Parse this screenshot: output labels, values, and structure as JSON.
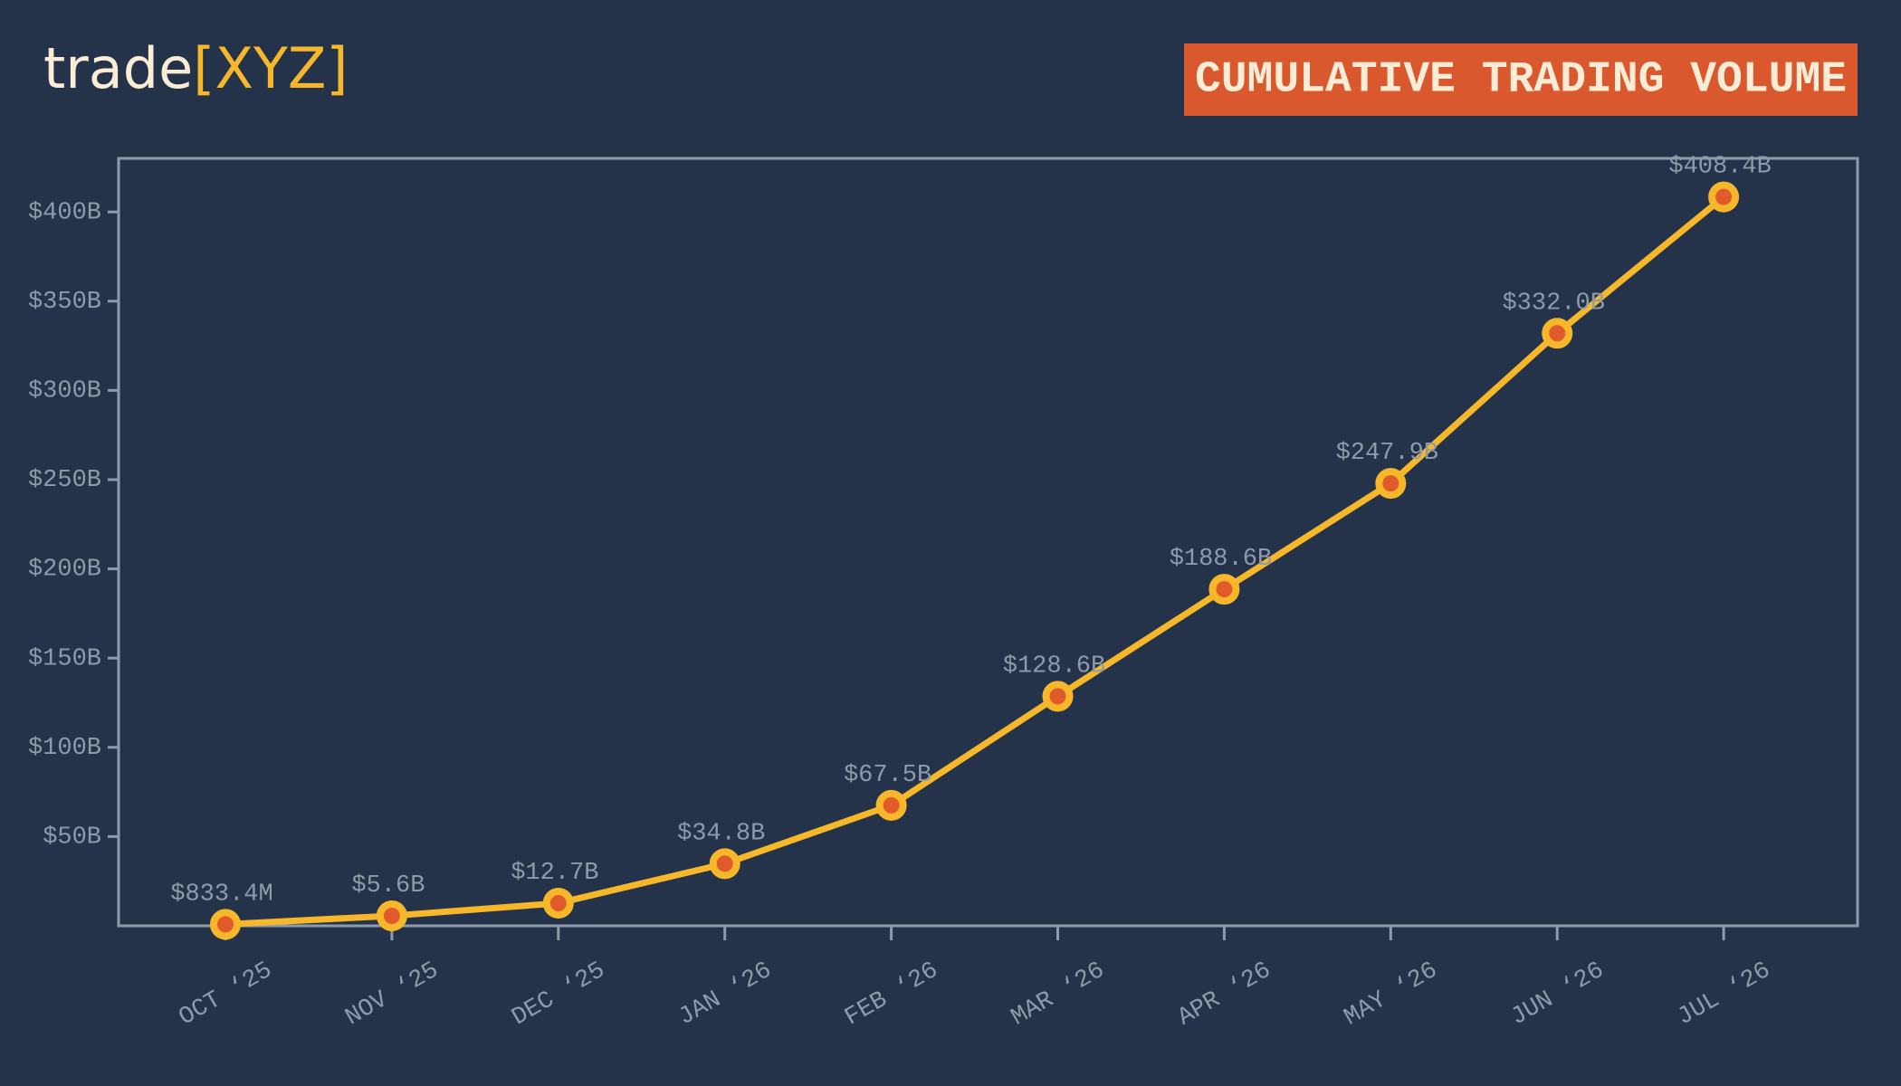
{
  "chart_data": {
    "type": "line",
    "brand": "trade",
    "brand_accent": "[XYZ]",
    "title": "CUMULATIVE TRADING VOLUME",
    "categories": [
      "OCT ‘25",
      "NOV ‘25",
      "DEC ‘25",
      "JAN ‘26",
      "FEB ‘26",
      "MAR ‘26",
      "APR ‘26",
      "MAY ‘26",
      "JUN ‘26",
      "JUL ‘26"
    ],
    "values": [
      0.8334,
      5.6,
      12.7,
      34.8,
      67.5,
      128.6,
      188.6,
      247.9,
      332.0,
      408.4
    ],
    "value_labels": [
      "$833.4M",
      "$5.6B",
      "$12.7B",
      "$34.8B",
      "$67.5B",
      "$128.6B",
      "$188.6B",
      "$247.9B",
      "$332.0B",
      "$408.4B"
    ],
    "color": "#f6b82a",
    "marker_color": "#e05a2b",
    "ylim": [
      0,
      430
    ],
    "yticks": [
      {
        "value": 50,
        "label": "$50B"
      },
      {
        "value": 100,
        "label": "$100B"
      },
      {
        "value": 150,
        "label": "$150B"
      },
      {
        "value": 200,
        "label": "$200B"
      },
      {
        "value": 250,
        "label": "$250B"
      },
      {
        "value": 300,
        "label": "$300B"
      },
      {
        "value": 350,
        "label": "$350B"
      },
      {
        "value": 400,
        "label": "$400B"
      }
    ],
    "grid": false
  }
}
